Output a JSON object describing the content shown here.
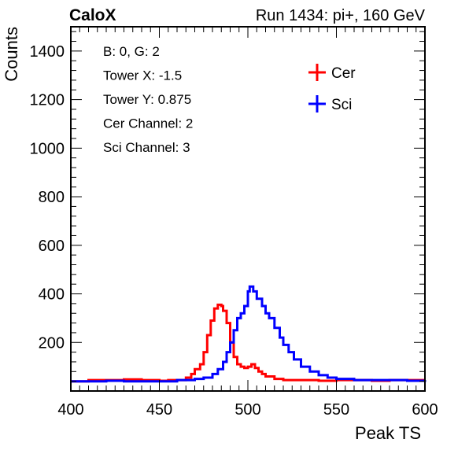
{
  "chart_data": {
    "type": "line",
    "experiment_label": "CaloX",
    "title": "Run 1434: pi+, 160 GeV",
    "xlabel": "Peak TS",
    "ylabel": "Counts",
    "xlim": [
      400,
      600
    ],
    "ylim": [
      0,
      1500
    ],
    "x_ticks": [
      400,
      450,
      500,
      550,
      600
    ],
    "y_ticks": [
      200,
      400,
      600,
      800,
      1000,
      1200,
      1400
    ],
    "grid": false,
    "legend_position": "top-right",
    "info_lines": [
      "B: 0, G: 2",
      "Tower X: -1.5",
      "Tower Y: 0.875",
      "Cer Channel: 2",
      "Sci Channel: 3"
    ],
    "series": [
      {
        "name": "Cer",
        "color": "#ff0000",
        "points": [
          [
            400,
            40
          ],
          [
            410,
            45
          ],
          [
            420,
            45
          ],
          [
            430,
            48
          ],
          [
            440,
            45
          ],
          [
            450,
            42
          ],
          [
            455,
            45
          ],
          [
            460,
            45
          ],
          [
            465,
            55
          ],
          [
            468,
            70
          ],
          [
            470,
            90
          ],
          [
            473,
            110
          ],
          [
            475,
            160
          ],
          [
            477,
            230
          ],
          [
            479,
            290
          ],
          [
            481,
            340
          ],
          [
            483,
            355
          ],
          [
            485,
            350
          ],
          [
            486,
            330
          ],
          [
            488,
            280
          ],
          [
            490,
            200
          ],
          [
            492,
            140
          ],
          [
            494,
            110
          ],
          [
            496,
            100
          ],
          [
            498,
            95
          ],
          [
            500,
            100
          ],
          [
            502,
            110
          ],
          [
            504,
            95
          ],
          [
            506,
            80
          ],
          [
            508,
            70
          ],
          [
            510,
            60
          ],
          [
            515,
            50
          ],
          [
            520,
            45
          ],
          [
            530,
            45
          ],
          [
            540,
            42
          ],
          [
            550,
            45
          ],
          [
            560,
            45
          ],
          [
            570,
            42
          ],
          [
            580,
            45
          ],
          [
            590,
            45
          ],
          [
            600,
            45
          ]
        ]
      },
      {
        "name": "Sci",
        "color": "#0000ff",
        "points": [
          [
            400,
            40
          ],
          [
            410,
            40
          ],
          [
            420,
            42
          ],
          [
            430,
            40
          ],
          [
            440,
            40
          ],
          [
            450,
            40
          ],
          [
            460,
            45
          ],
          [
            470,
            50
          ],
          [
            475,
            55
          ],
          [
            480,
            70
          ],
          [
            483,
            90
          ],
          [
            486,
            120
          ],
          [
            488,
            160
          ],
          [
            490,
            200
          ],
          [
            492,
            250
          ],
          [
            494,
            300
          ],
          [
            496,
            320
          ],
          [
            498,
            350
          ],
          [
            500,
            410
          ],
          [
            501,
            430
          ],
          [
            503,
            410
          ],
          [
            505,
            380
          ],
          [
            508,
            350
          ],
          [
            510,
            320
          ],
          [
            512,
            300
          ],
          [
            515,
            260
          ],
          [
            518,
            220
          ],
          [
            520,
            190
          ],
          [
            523,
            160
          ],
          [
            526,
            130
          ],
          [
            530,
            100
          ],
          [
            535,
            80
          ],
          [
            540,
            65
          ],
          [
            545,
            55
          ],
          [
            550,
            50
          ],
          [
            560,
            45
          ],
          [
            570,
            45
          ],
          [
            580,
            45
          ],
          [
            590,
            42
          ],
          [
            600,
            45
          ]
        ]
      }
    ]
  }
}
